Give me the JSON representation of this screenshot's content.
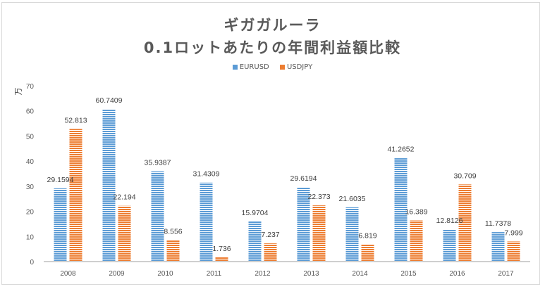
{
  "chart_data": {
    "type": "bar",
    "title": "ギガガルーラ",
    "subtitle": "0.1ロットあたりの年間利益額比較",
    "xlabel": "",
    "ylabel": "万",
    "ylim": [
      0,
      70
    ],
    "yticks": [
      "0",
      "10",
      "20",
      "30",
      "40",
      "50",
      "60",
      "70"
    ],
    "grid": false,
    "legend_position": "top",
    "categories": [
      "2008",
      "2009",
      "2010",
      "2011",
      "2012",
      "2013",
      "2014",
      "2015",
      "2016",
      "2017"
    ],
    "series": [
      {
        "name": "EURUSD",
        "color": "#5b9bd5",
        "values": [
          29.1594,
          60.7409,
          35.9387,
          31.4309,
          15.9704,
          29.6194,
          21.6035,
          41.2652,
          12.8126,
          11.7378
        ],
        "labels": [
          "29.1594",
          "60.7409",
          "35.9387",
          "31.4309",
          "15.9704",
          "29.6194",
          "21.6035",
          "41.2652",
          "12.8126",
          "11.7378"
        ]
      },
      {
        "name": "USDJPY",
        "color": "#ed7d31",
        "values": [
          52.813,
          22.194,
          8.556,
          1.736,
          7.237,
          22.373,
          6.819,
          16.389,
          30.709,
          7.999
        ],
        "labels": [
          "52.813",
          "22.194",
          "8.556",
          "1.736",
          "7.237",
          "22.373",
          "6.819",
          "16.389",
          "30.709",
          "7.999"
        ]
      }
    ]
  }
}
